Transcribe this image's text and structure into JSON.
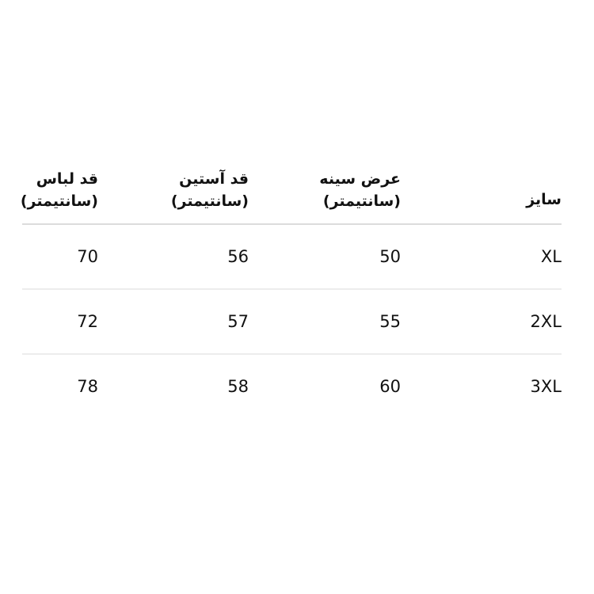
{
  "table": {
    "headers": [
      {
        "line1": "سایز",
        "line2": ""
      },
      {
        "line1": "عرض سینه",
        "line2": "(سانتیمتر)"
      },
      {
        "line1": "قد آستین",
        "line2": "(سانتیمتر)"
      },
      {
        "line1": "قد لباس",
        "line2": "(سانتیمتر)"
      }
    ],
    "rows": [
      [
        "XL",
        "50",
        "56",
        "70"
      ],
      [
        "2XL",
        "55",
        "57",
        "72"
      ],
      [
        "3XL",
        "60",
        "58",
        "78"
      ]
    ]
  }
}
